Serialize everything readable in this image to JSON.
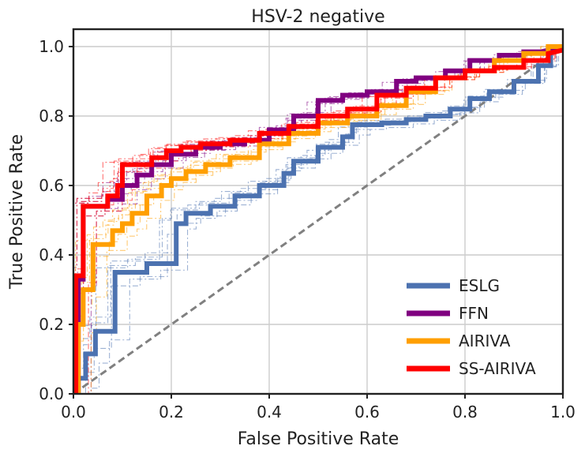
{
  "chart_data": {
    "type": "line",
    "title": "HSV-2 negative",
    "xlabel": "False Positive Rate",
    "ylabel": "True Positive Rate",
    "xlim": [
      0,
      1
    ],
    "ylim": [
      0,
      1.05
    ],
    "xticks": [
      0.0,
      0.2,
      0.4,
      0.6,
      0.8,
      1.0
    ],
    "yticks": [
      0.0,
      0.2,
      0.4,
      0.6,
      0.8,
      1.0
    ],
    "xtick_labels": [
      "0.0",
      "0.2",
      "0.4",
      "0.6",
      "0.8",
      "1.0"
    ],
    "ytick_labels": [
      "0.0",
      "0.2",
      "0.4",
      "0.6",
      "0.8",
      "1.0"
    ],
    "grid": true,
    "legend_position": "bottom-right",
    "reference_line": {
      "name": "chance",
      "x": [
        0,
        1
      ],
      "y": [
        0,
        1
      ],
      "color": "#808080",
      "style": "dashed"
    },
    "series": [
      {
        "name": "ESLG",
        "color": "#4c72b0",
        "x": [
          0,
          0.01,
          0.01,
          0.025,
          0.025,
          0.045,
          0.045,
          0.085,
          0.085,
          0.15,
          0.15,
          0.21,
          0.21,
          0.23,
          0.23,
          0.28,
          0.28,
          0.33,
          0.33,
          0.38,
          0.38,
          0.43,
          0.43,
          0.45,
          0.45,
          0.5,
          0.5,
          0.55,
          0.55,
          0.57,
          0.57,
          0.63,
          0.63,
          0.68,
          0.68,
          0.72,
          0.72,
          0.77,
          0.77,
          0.81,
          0.81,
          0.85,
          0.85,
          0.9,
          0.9,
          0.95,
          0.95,
          0.975,
          0.975,
          1.0
        ],
        "y": [
          0,
          0,
          0.045,
          0.045,
          0.115,
          0.115,
          0.18,
          0.18,
          0.35,
          0.35,
          0.375,
          0.375,
          0.49,
          0.49,
          0.52,
          0.52,
          0.54,
          0.54,
          0.57,
          0.57,
          0.6,
          0.6,
          0.635,
          0.635,
          0.67,
          0.67,
          0.71,
          0.71,
          0.74,
          0.74,
          0.775,
          0.775,
          0.78,
          0.78,
          0.79,
          0.79,
          0.8,
          0.8,
          0.82,
          0.82,
          0.85,
          0.85,
          0.87,
          0.87,
          0.9,
          0.9,
          0.945,
          0.945,
          0.99,
          1.0
        ]
      },
      {
        "name": "FFN",
        "color": "#800080",
        "x": [
          0,
          0.01,
          0.01,
          0.02,
          0.02,
          0.07,
          0.07,
          0.1,
          0.1,
          0.13,
          0.13,
          0.16,
          0.16,
          0.2,
          0.2,
          0.25,
          0.25,
          0.3,
          0.3,
          0.35,
          0.35,
          0.4,
          0.4,
          0.45,
          0.45,
          0.5,
          0.5,
          0.55,
          0.55,
          0.6,
          0.6,
          0.66,
          0.66,
          0.7,
          0.7,
          0.76,
          0.76,
          0.81,
          0.81,
          0.87,
          0.87,
          0.92,
          0.92,
          0.97,
          0.97,
          1.0
        ],
        "y": [
          0,
          0,
          0.33,
          0.33,
          0.54,
          0.54,
          0.56,
          0.56,
          0.6,
          0.6,
          0.63,
          0.63,
          0.66,
          0.66,
          0.69,
          0.69,
          0.71,
          0.71,
          0.72,
          0.72,
          0.73,
          0.73,
          0.76,
          0.76,
          0.8,
          0.8,
          0.845,
          0.845,
          0.86,
          0.86,
          0.87,
          0.87,
          0.9,
          0.9,
          0.91,
          0.91,
          0.93,
          0.93,
          0.96,
          0.96,
          0.975,
          0.975,
          0.985,
          0.985,
          0.99,
          1.0
        ]
      },
      {
        "name": "AIRIVA",
        "color": "#ff9f00",
        "x": [
          0,
          0.01,
          0.01,
          0.02,
          0.02,
          0.04,
          0.04,
          0.08,
          0.08,
          0.1,
          0.1,
          0.12,
          0.12,
          0.15,
          0.15,
          0.18,
          0.18,
          0.2,
          0.2,
          0.23,
          0.23,
          0.27,
          0.27,
          0.32,
          0.32,
          0.38,
          0.38,
          0.44,
          0.44,
          0.5,
          0.5,
          0.56,
          0.56,
          0.62,
          0.62,
          0.68,
          0.68,
          0.74,
          0.74,
          0.8,
          0.8,
          0.86,
          0.86,
          0.92,
          0.92,
          0.97,
          0.97,
          1.0
        ],
        "y": [
          0,
          0,
          0.2,
          0.2,
          0.3,
          0.3,
          0.43,
          0.43,
          0.47,
          0.47,
          0.49,
          0.49,
          0.52,
          0.52,
          0.57,
          0.57,
          0.6,
          0.6,
          0.62,
          0.62,
          0.64,
          0.64,
          0.66,
          0.66,
          0.68,
          0.68,
          0.72,
          0.72,
          0.75,
          0.75,
          0.78,
          0.78,
          0.8,
          0.8,
          0.83,
          0.83,
          0.87,
          0.87,
          0.91,
          0.91,
          0.93,
          0.93,
          0.96,
          0.96,
          0.98,
          0.98,
          1.0,
          1.0
        ]
      },
      {
        "name": "SS-AIRIVA",
        "color": "#ff0000",
        "x": [
          0,
          0.005,
          0.005,
          0.02,
          0.02,
          0.07,
          0.07,
          0.09,
          0.09,
          0.1,
          0.1,
          0.16,
          0.16,
          0.19,
          0.19,
          0.22,
          0.22,
          0.26,
          0.26,
          0.32,
          0.32,
          0.38,
          0.38,
          0.44,
          0.44,
          0.5,
          0.5,
          0.56,
          0.56,
          0.62,
          0.62,
          0.68,
          0.68,
          0.74,
          0.74,
          0.8,
          0.8,
          0.86,
          0.86,
          0.92,
          0.92,
          0.97,
          0.97,
          1.0
        ],
        "y": [
          0,
          0,
          0.34,
          0.34,
          0.54,
          0.54,
          0.57,
          0.57,
          0.6,
          0.6,
          0.66,
          0.66,
          0.68,
          0.68,
          0.7,
          0.7,
          0.71,
          0.71,
          0.72,
          0.72,
          0.73,
          0.73,
          0.75,
          0.75,
          0.77,
          0.77,
          0.8,
          0.8,
          0.82,
          0.82,
          0.86,
          0.86,
          0.88,
          0.88,
          0.91,
          0.91,
          0.93,
          0.93,
          0.94,
          0.94,
          0.96,
          0.96,
          0.98,
          0.99
        ]
      }
    ]
  }
}
